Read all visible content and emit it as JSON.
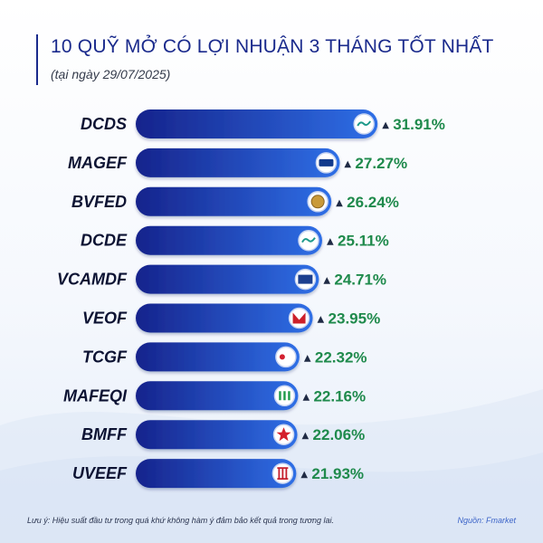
{
  "header": {
    "title": "10 QUỸ MỞ CÓ LỢI NHUẬN 3 THÁNG TỐT NHẤT",
    "subtitle": "(tại ngày 29/07/2025)"
  },
  "footer": {
    "note": "Lưu ý: Hiệu suất đầu tư trong quá khứ không hàm ý đảm bảo kết quả trong tương lai.",
    "source": "Nguồn: Fmarket"
  },
  "colors": {
    "bar_start": "#16238c",
    "bar_end": "#2f6fe6",
    "value_text": "#1f8a4c",
    "label_text": "#0d1333"
  },
  "chart_data": {
    "type": "bar",
    "orientation": "horizontal",
    "categories": [
      "DCDS",
      "MAGEF",
      "BVFED",
      "DCDE",
      "VCAMDF",
      "VEOF",
      "TCGF",
      "MAFEQI",
      "BMFF",
      "UVEEF"
    ],
    "values": [
      31.91,
      27.27,
      26.24,
      25.11,
      24.71,
      23.95,
      22.32,
      22.16,
      22.06,
      21.93
    ],
    "value_labels": [
      "31.91%",
      "27.27%",
      "26.24%",
      "25.11%",
      "24.71%",
      "23.95%",
      "22.32%",
      "22.16%",
      "22.06%",
      "21.93%"
    ],
    "value_marker": "▲",
    "unit": "%",
    "logo_icons": [
      "dragon-capital-logo-icon",
      "mirae-asset-logo-icon",
      "baoviet-logo-icon",
      "dragon-capital-logo-icon",
      "vcam-logo-icon",
      "vinacapital-logo-icon",
      "tcam-logo-icon",
      "manulife-logo-icon",
      "bidv-logo-icon",
      "uob-logo-icon"
    ],
    "grid": false,
    "legend": "none"
  }
}
